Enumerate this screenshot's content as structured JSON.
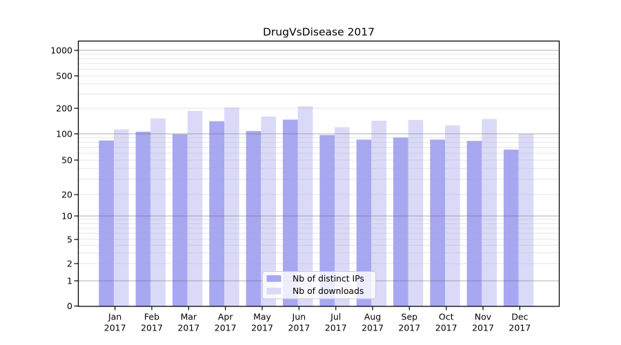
{
  "title": "DrugVsDisease 2017",
  "colors": {
    "distinct_ips_bar": "#a7a7f2",
    "downloads_bar": "#dadaf8",
    "major_gridline": "#b0b0b0",
    "minor_gridline": "#e8e8e8",
    "axis_line": "#000000",
    "text": "#000000",
    "legend_background": "#ffffff",
    "legend_border": "#cccccc"
  },
  "chart_data": {
    "type": "bar",
    "title": "DrugVsDisease 2017",
    "x_months": [
      "Jan",
      "Feb",
      "Mar",
      "Apr",
      "May",
      "Jun",
      "Jul",
      "Aug",
      "Sep",
      "Oct",
      "Nov",
      "Dec"
    ],
    "x_year": "2017",
    "series": [
      {
        "name": "Nb of distinct IPs",
        "color": "#a7a7f2",
        "values": [
          84,
          106,
          99,
          141,
          108,
          147,
          97,
          86,
          91,
          86,
          83,
          66
        ]
      },
      {
        "name": "Nb of downloads",
        "color": "#dadaf8",
        "values": [
          113,
          152,
          186,
          205,
          160,
          212,
          120,
          143,
          146,
          126,
          150,
          100
        ]
      }
    ],
    "y_axis": {
      "scale": "symlog",
      "ylim": [
        0,
        1300
      ],
      "tick_values": [
        0,
        1,
        2,
        5,
        10,
        20,
        50,
        100,
        200,
        500,
        1000
      ],
      "tick_labels": [
        "0",
        "1",
        "2",
        "5",
        "10",
        "20",
        "50",
        "100",
        "200",
        "500",
        "1000"
      ],
      "major_grid_values": [
        1,
        10,
        100,
        1000
      ],
      "minor_grid_values": [
        2,
        3,
        4,
        5,
        6,
        7,
        8,
        9,
        20,
        30,
        40,
        50,
        60,
        70,
        80,
        90,
        200,
        300,
        400,
        500,
        600,
        700,
        800,
        900
      ]
    },
    "legend": {
      "position": "lower-center",
      "entries": [
        "Nb of distinct IPs",
        "Nb of downloads"
      ]
    },
    "grid": true
  }
}
